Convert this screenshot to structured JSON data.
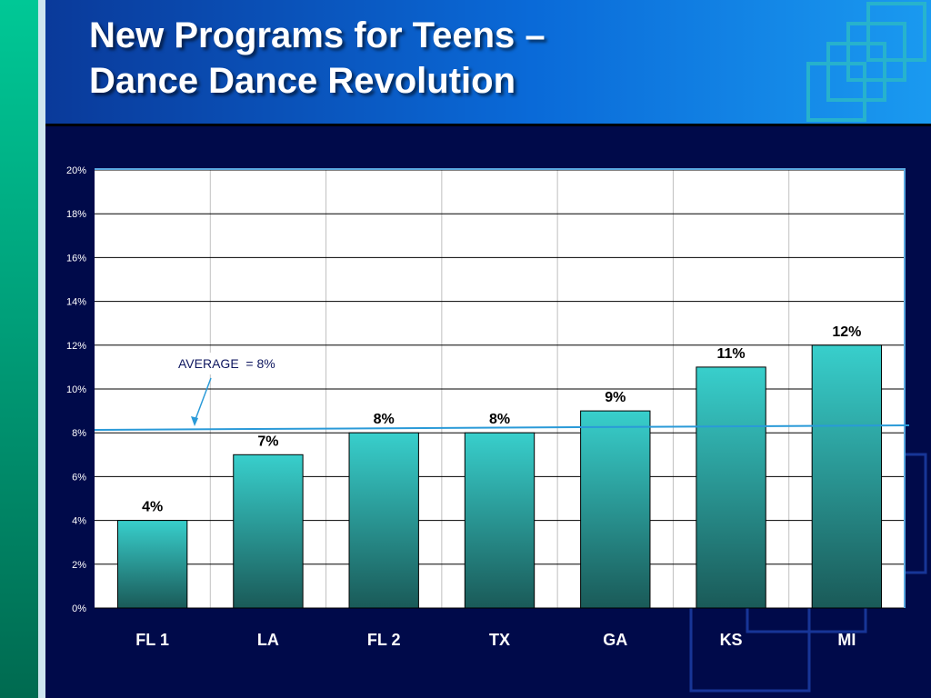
{
  "slide": {
    "title_line1": "New Programs for Teens –",
    "title_line2": "Dance Dance Revolution"
  },
  "colors": {
    "bar_top": "#38cfcc",
    "bar_bottom": "#1a5a58",
    "average_line": "#2a9ad8",
    "plot_background": "#ffffff",
    "gridline": "#000000"
  },
  "chart_data": {
    "type": "bar",
    "categories": [
      "FL 1",
      "LA",
      "FL 2",
      "TX",
      "GA",
      "KS",
      "MI"
    ],
    "values": [
      4,
      7,
      8,
      8,
      9,
      11,
      12
    ],
    "data_labels": [
      "4%",
      "7%",
      "8%",
      "8%",
      "9%",
      "11%",
      "12%"
    ],
    "ylim": [
      0,
      20
    ],
    "yticks": [
      0,
      2,
      4,
      6,
      8,
      10,
      12,
      14,
      16,
      18,
      20
    ],
    "ytick_labels": [
      "0%",
      "2%",
      "4%",
      "6%",
      "8%",
      "10%",
      "12%",
      "14%",
      "16%",
      "18%",
      "20%"
    ],
    "grid": true,
    "average": {
      "value": 8,
      "label": "AVERAGE  = 8%"
    }
  }
}
